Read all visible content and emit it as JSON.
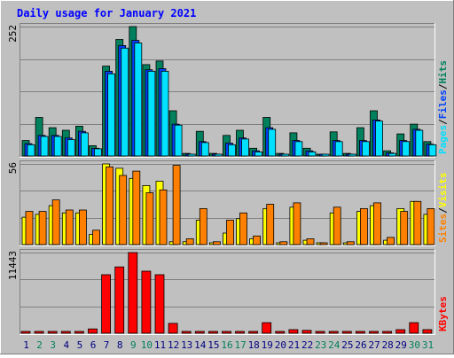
{
  "title": "Daily usage for January 2021",
  "colors": {
    "background": "#c0c0c0",
    "frame_light": "#ffffff",
    "frame_dark": "#808080",
    "gridline": "#808080",
    "hits": "#00805c",
    "files": "#0040ff",
    "pages": "#00e0ff",
    "visits": "#ffff00",
    "sites": "#ff8000",
    "kbytes": "#ff0000",
    "title": "#0000ff",
    "weekday_label": "#000080",
    "weekend_label": "#00805c"
  },
  "chart_data": [
    {
      "type": "bar",
      "panel": "hits-files-pages",
      "title": "Daily usage for January 2021",
      "ymax_label": "252",
      "ylim": [
        0,
        252
      ],
      "right_label": [
        {
          "text": "Pages",
          "color": "#00e0ff"
        },
        {
          "text": "/",
          "color": "#000000"
        },
        {
          "text": "Files",
          "color": "#0040ff"
        },
        {
          "text": "/",
          "color": "#000000"
        },
        {
          "text": "Hits",
          "color": "#00805c"
        }
      ],
      "categories": [
        "1",
        "2",
        "3",
        "4",
        "5",
        "6",
        "7",
        "8",
        "9",
        "10",
        "11",
        "12",
        "13",
        "14",
        "15",
        "16",
        "17",
        "18",
        "19",
        "20",
        "21",
        "22",
        "23",
        "24",
        "25",
        "26",
        "27",
        "28",
        "29",
        "30",
        "31"
      ],
      "series": [
        {
          "name": "Hits",
          "values": [
            30,
            75,
            55,
            50,
            58,
            20,
            175,
            227,
            252,
            178,
            185,
            88,
            5,
            48,
            5,
            40,
            50,
            15,
            75,
            5,
            45,
            15,
            0,
            47,
            5,
            55,
            88,
            10,
            43,
            62,
            28
          ]
        },
        {
          "name": "Files",
          "values": [
            24,
            40,
            40,
            35,
            48,
            15,
            165,
            215,
            225,
            168,
            170,
            62,
            3,
            28,
            3,
            25,
            35,
            10,
            55,
            3,
            30,
            10,
            0,
            30,
            3,
            30,
            70,
            6,
            30,
            52,
            23
          ]
        },
        {
          "name": "Pages",
          "values": [
            22,
            38,
            38,
            32,
            45,
            14,
            160,
            210,
            220,
            165,
            165,
            60,
            3,
            26,
            3,
            22,
            33,
            8,
            52,
            3,
            28,
            8,
            0,
            28,
            3,
            28,
            68,
            5,
            28,
            50,
            22
          ]
        }
      ]
    },
    {
      "type": "bar",
      "panel": "visits-sites",
      "ymax_label": "56",
      "ylim": [
        0,
        56
      ],
      "right_label": [
        {
          "text": "Sites",
          "color": "#ff8000"
        },
        {
          "text": "/",
          "color": "#000000"
        },
        {
          "text": "Visits",
          "color": "#ffff00"
        }
      ],
      "categories": [
        "1",
        "2",
        "3",
        "4",
        "5",
        "6",
        "7",
        "8",
        "9",
        "10",
        "11",
        "12",
        "13",
        "14",
        "15",
        "16",
        "17",
        "18",
        "19",
        "20",
        "21",
        "22",
        "23",
        "24",
        "25",
        "26",
        "27",
        "28",
        "29",
        "30",
        "31"
      ],
      "series": [
        {
          "name": "Visits",
          "values": [
            19,
            21,
            27,
            22,
            22,
            7,
            56,
            53,
            46,
            41,
            44,
            2,
            2,
            17,
            1,
            8,
            18,
            4,
            25,
            1,
            26,
            3,
            0,
            22,
            1,
            23,
            27,
            3,
            25,
            30,
            21
          ]
        },
        {
          "name": "Sites",
          "values": [
            23,
            23,
            31,
            24,
            24,
            10,
            54,
            48,
            51,
            36,
            38,
            55,
            4,
            25,
            2,
            17,
            22,
            6,
            28,
            2,
            29,
            4,
            0,
            26,
            2,
            25,
            29,
            5,
            23,
            30,
            25
          ]
        }
      ]
    },
    {
      "type": "bar",
      "panel": "kbytes",
      "ymax_label": "11443",
      "ylim": [
        0,
        11443
      ],
      "right_label": [
        {
          "text": "KBytes",
          "color": "#ff0000"
        }
      ],
      "categories": [
        "1",
        "2",
        "3",
        "4",
        "5",
        "6",
        "7",
        "8",
        "9",
        "10",
        "11",
        "12",
        "13",
        "14",
        "15",
        "16",
        "17",
        "18",
        "19",
        "20",
        "21",
        "22",
        "23",
        "24",
        "25",
        "26",
        "27",
        "28",
        "29",
        "30",
        "31"
      ],
      "series": [
        {
          "name": "KBytes",
          "values": [
            0,
            0,
            0,
            0,
            0,
            600,
            8300,
            9400,
            11443,
            8800,
            8300,
            1400,
            0,
            0,
            0,
            0,
            0,
            0,
            1500,
            0,
            500,
            400,
            0,
            0,
            0,
            0,
            0,
            0,
            500,
            1500,
            500
          ]
        }
      ]
    }
  ],
  "x_labels": [
    {
      "text": "1",
      "weekend": false
    },
    {
      "text": "2",
      "weekend": true
    },
    {
      "text": "3",
      "weekend": true
    },
    {
      "text": "4",
      "weekend": false
    },
    {
      "text": "5",
      "weekend": false
    },
    {
      "text": "6",
      "weekend": false
    },
    {
      "text": "7",
      "weekend": false
    },
    {
      "text": "8",
      "weekend": false
    },
    {
      "text": "9",
      "weekend": true
    },
    {
      "text": "10",
      "weekend": true
    },
    {
      "text": "11",
      "weekend": false
    },
    {
      "text": "12",
      "weekend": false
    },
    {
      "text": "13",
      "weekend": false
    },
    {
      "text": "14",
      "weekend": false
    },
    {
      "text": "15",
      "weekend": false
    },
    {
      "text": "16",
      "weekend": true
    },
    {
      "text": "17",
      "weekend": true
    },
    {
      "text": "18",
      "weekend": false
    },
    {
      "text": "19",
      "weekend": false
    },
    {
      "text": "20",
      "weekend": false
    },
    {
      "text": "21",
      "weekend": false
    },
    {
      "text": "22",
      "weekend": false
    },
    {
      "text": "23",
      "weekend": true
    },
    {
      "text": "24",
      "weekend": true
    },
    {
      "text": "25",
      "weekend": false
    },
    {
      "text": "26",
      "weekend": false
    },
    {
      "text": "27",
      "weekend": false
    },
    {
      "text": "28",
      "weekend": false
    },
    {
      "text": "29",
      "weekend": false
    },
    {
      "text": "30",
      "weekend": true
    },
    {
      "text": "31",
      "weekend": true
    }
  ]
}
